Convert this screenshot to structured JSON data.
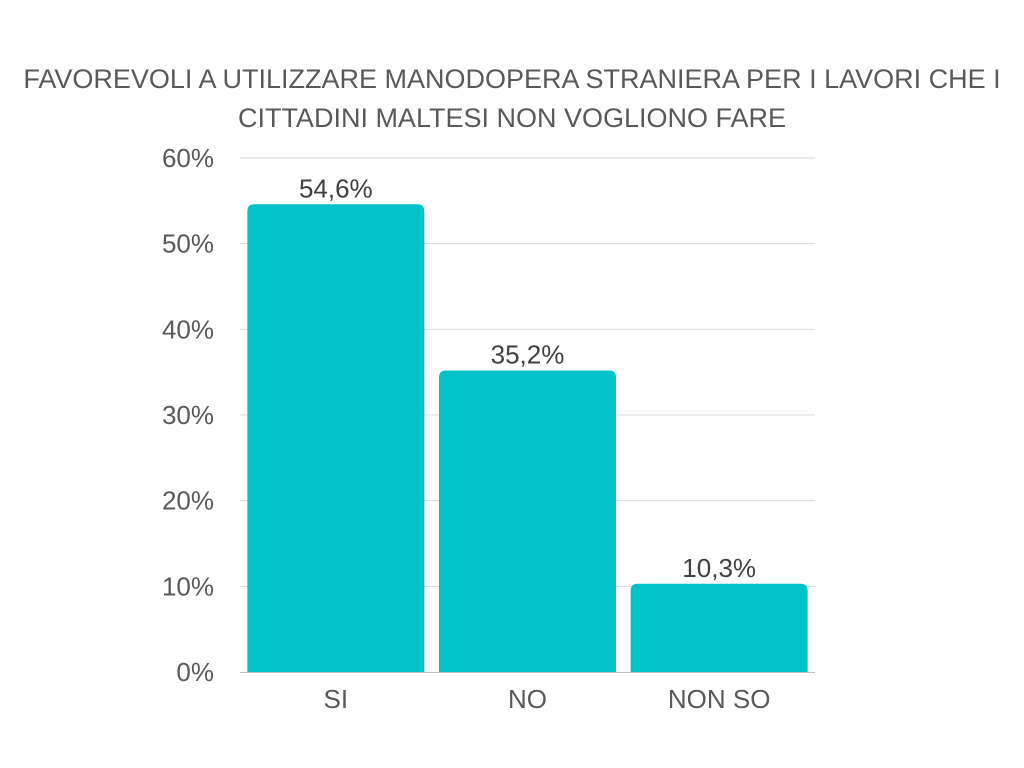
{
  "chart_data": {
    "type": "bar",
    "title_lines": [
      "FAVOREVOLI A UTILIZZARE MANODOPERA STRANIERA PER I LAVORI CHE I",
      "CITTADINI MALTESI NON VOGLIONO FARE"
    ],
    "categories": [
      "SI",
      "NO",
      "NON SO"
    ],
    "values": [
      54.6,
      35.2,
      10.3
    ],
    "data_labels": [
      "54,6%",
      "35,2%",
      "10,3%"
    ],
    "ylim": [
      0,
      60
    ],
    "yticks": [
      0,
      10,
      20,
      30,
      40,
      50,
      60
    ],
    "ytick_labels": [
      "0%",
      "10%",
      "20%",
      "30%",
      "40%",
      "50%",
      "60%"
    ],
    "xlabel": "",
    "ylabel": "",
    "grid": true,
    "legend": "none",
    "colors": {
      "bar": "#00C2C9",
      "grid": "#D9D9D9",
      "axis": "#BFBFBF",
      "text": "#595959"
    }
  }
}
